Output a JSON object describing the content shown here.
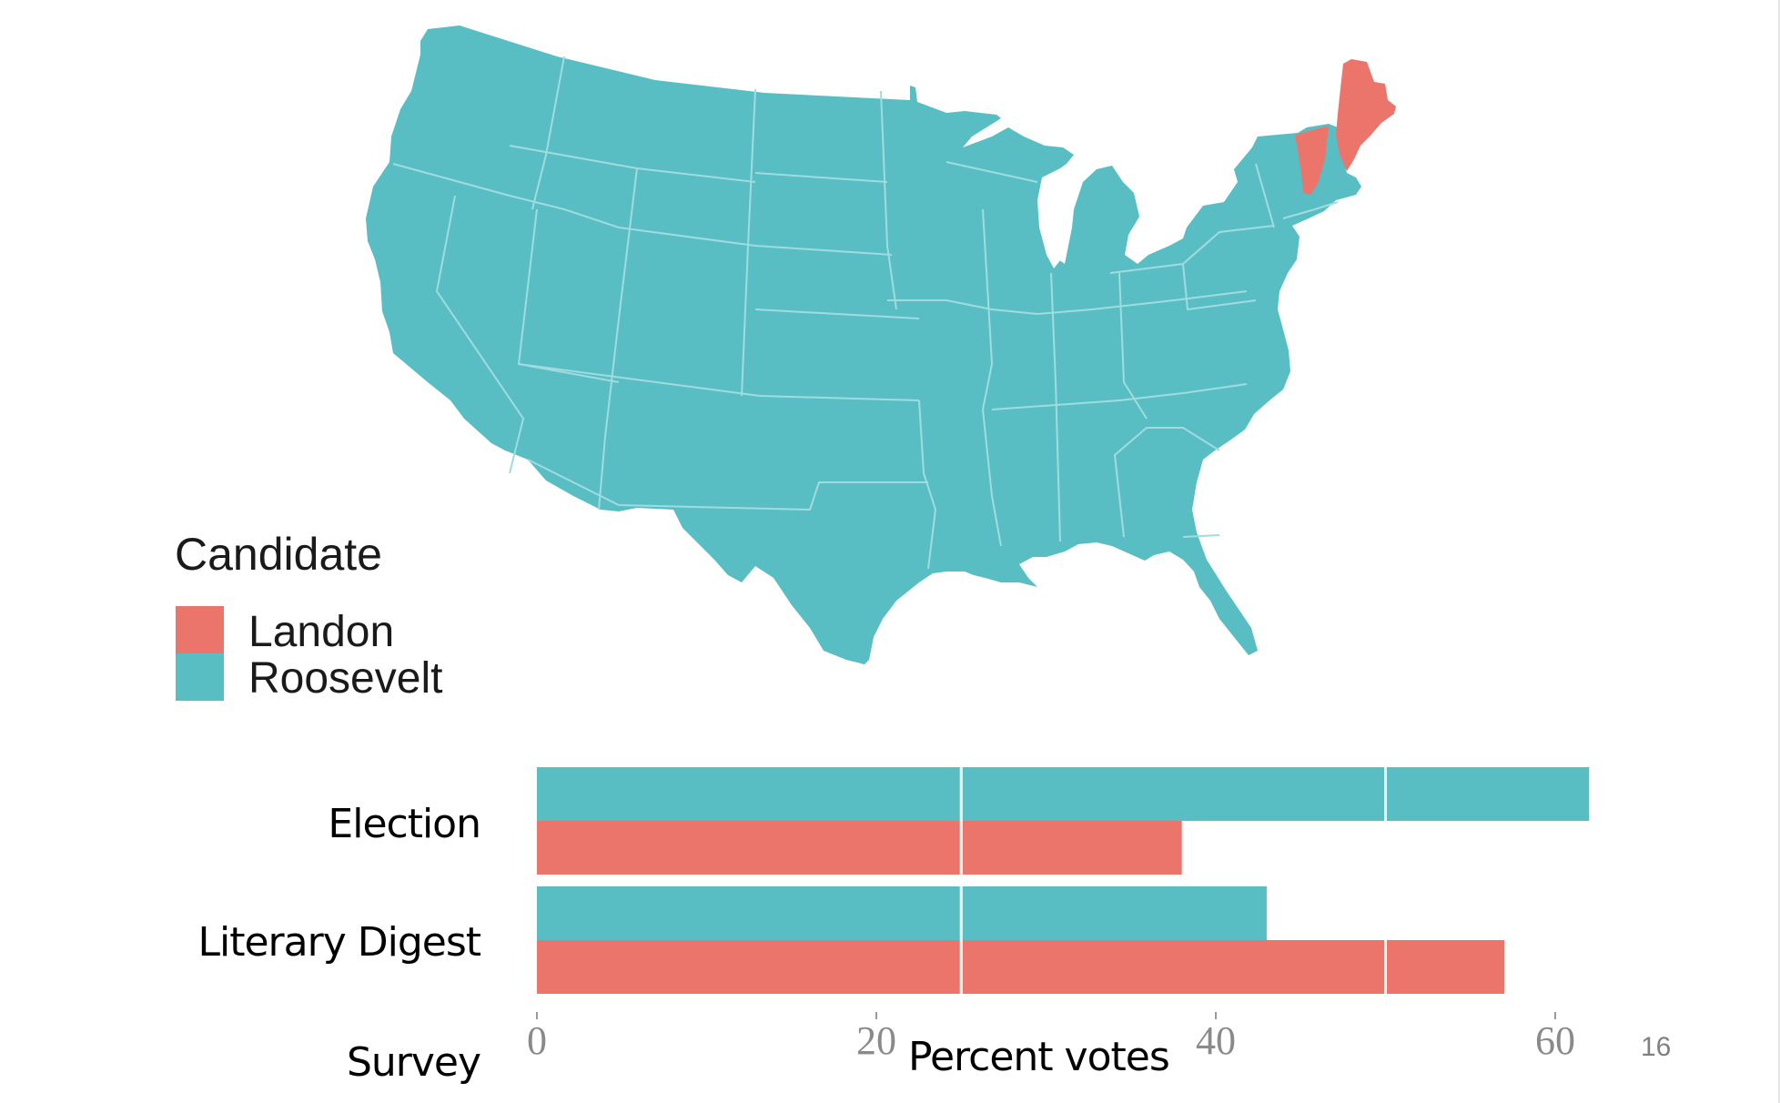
{
  "colors": {
    "landon": "#eb756b",
    "roosevelt": "#58bec3",
    "state_border": "#9fdcdf",
    "tick_text": "#8a8a8a",
    "page_number": "#808080"
  },
  "map": {
    "legend_title": "Candidate",
    "legend": [
      {
        "label": "Landon",
        "color": "#eb756b"
      },
      {
        "label": "Roosevelt",
        "color": "#58bec3"
      }
    ],
    "landon_states": [
      "Maine",
      "Vermont"
    ],
    "default_state_winner": "Roosevelt"
  },
  "chart_data": {
    "type": "bar",
    "orientation": "horizontal",
    "categories": [
      "Election",
      "Literary Digest"
    ],
    "y_axis_extra_label": "Survey",
    "series": [
      {
        "name": "Roosevelt",
        "values": [
          62,
          43
        ]
      },
      {
        "name": "Landon",
        "values": [
          38,
          57
        ]
      }
    ],
    "xlabel": "Percent votes",
    "xlim": [
      0,
      62
    ],
    "xticks": [
      0,
      20,
      40,
      60
    ],
    "gridlines": [
      25,
      50
    ],
    "legend": "left"
  },
  "page_number": "16"
}
